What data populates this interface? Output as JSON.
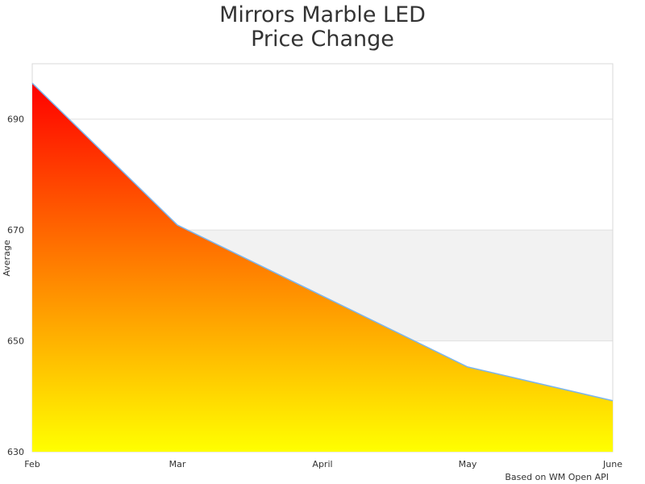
{
  "chart_data": {
    "type": "area",
    "title": [
      "Mirrors Marble LED",
      "Price Change"
    ],
    "ylabel": "Average",
    "xlabel": "",
    "credit": "Based on WM Open API",
    "categories": [
      "Feb",
      "Mar",
      "April",
      "May",
      "June"
    ],
    "series": [
      {
        "values": [
          696.5,
          670.9,
          658.1,
          645.3,
          639.2
        ]
      }
    ],
    "ylim": [
      630,
      700
    ],
    "yticks": [
      630,
      650,
      670,
      690
    ],
    "bands": [
      [
        650,
        670
      ]
    ],
    "grid": true,
    "legend": "none",
    "colors": {
      "gradient_top": "#ff0000",
      "gradient_bottom": "#ffff00",
      "line": "#7cb5ec",
      "band": "#f2f2f2",
      "text": "#333333"
    }
  }
}
